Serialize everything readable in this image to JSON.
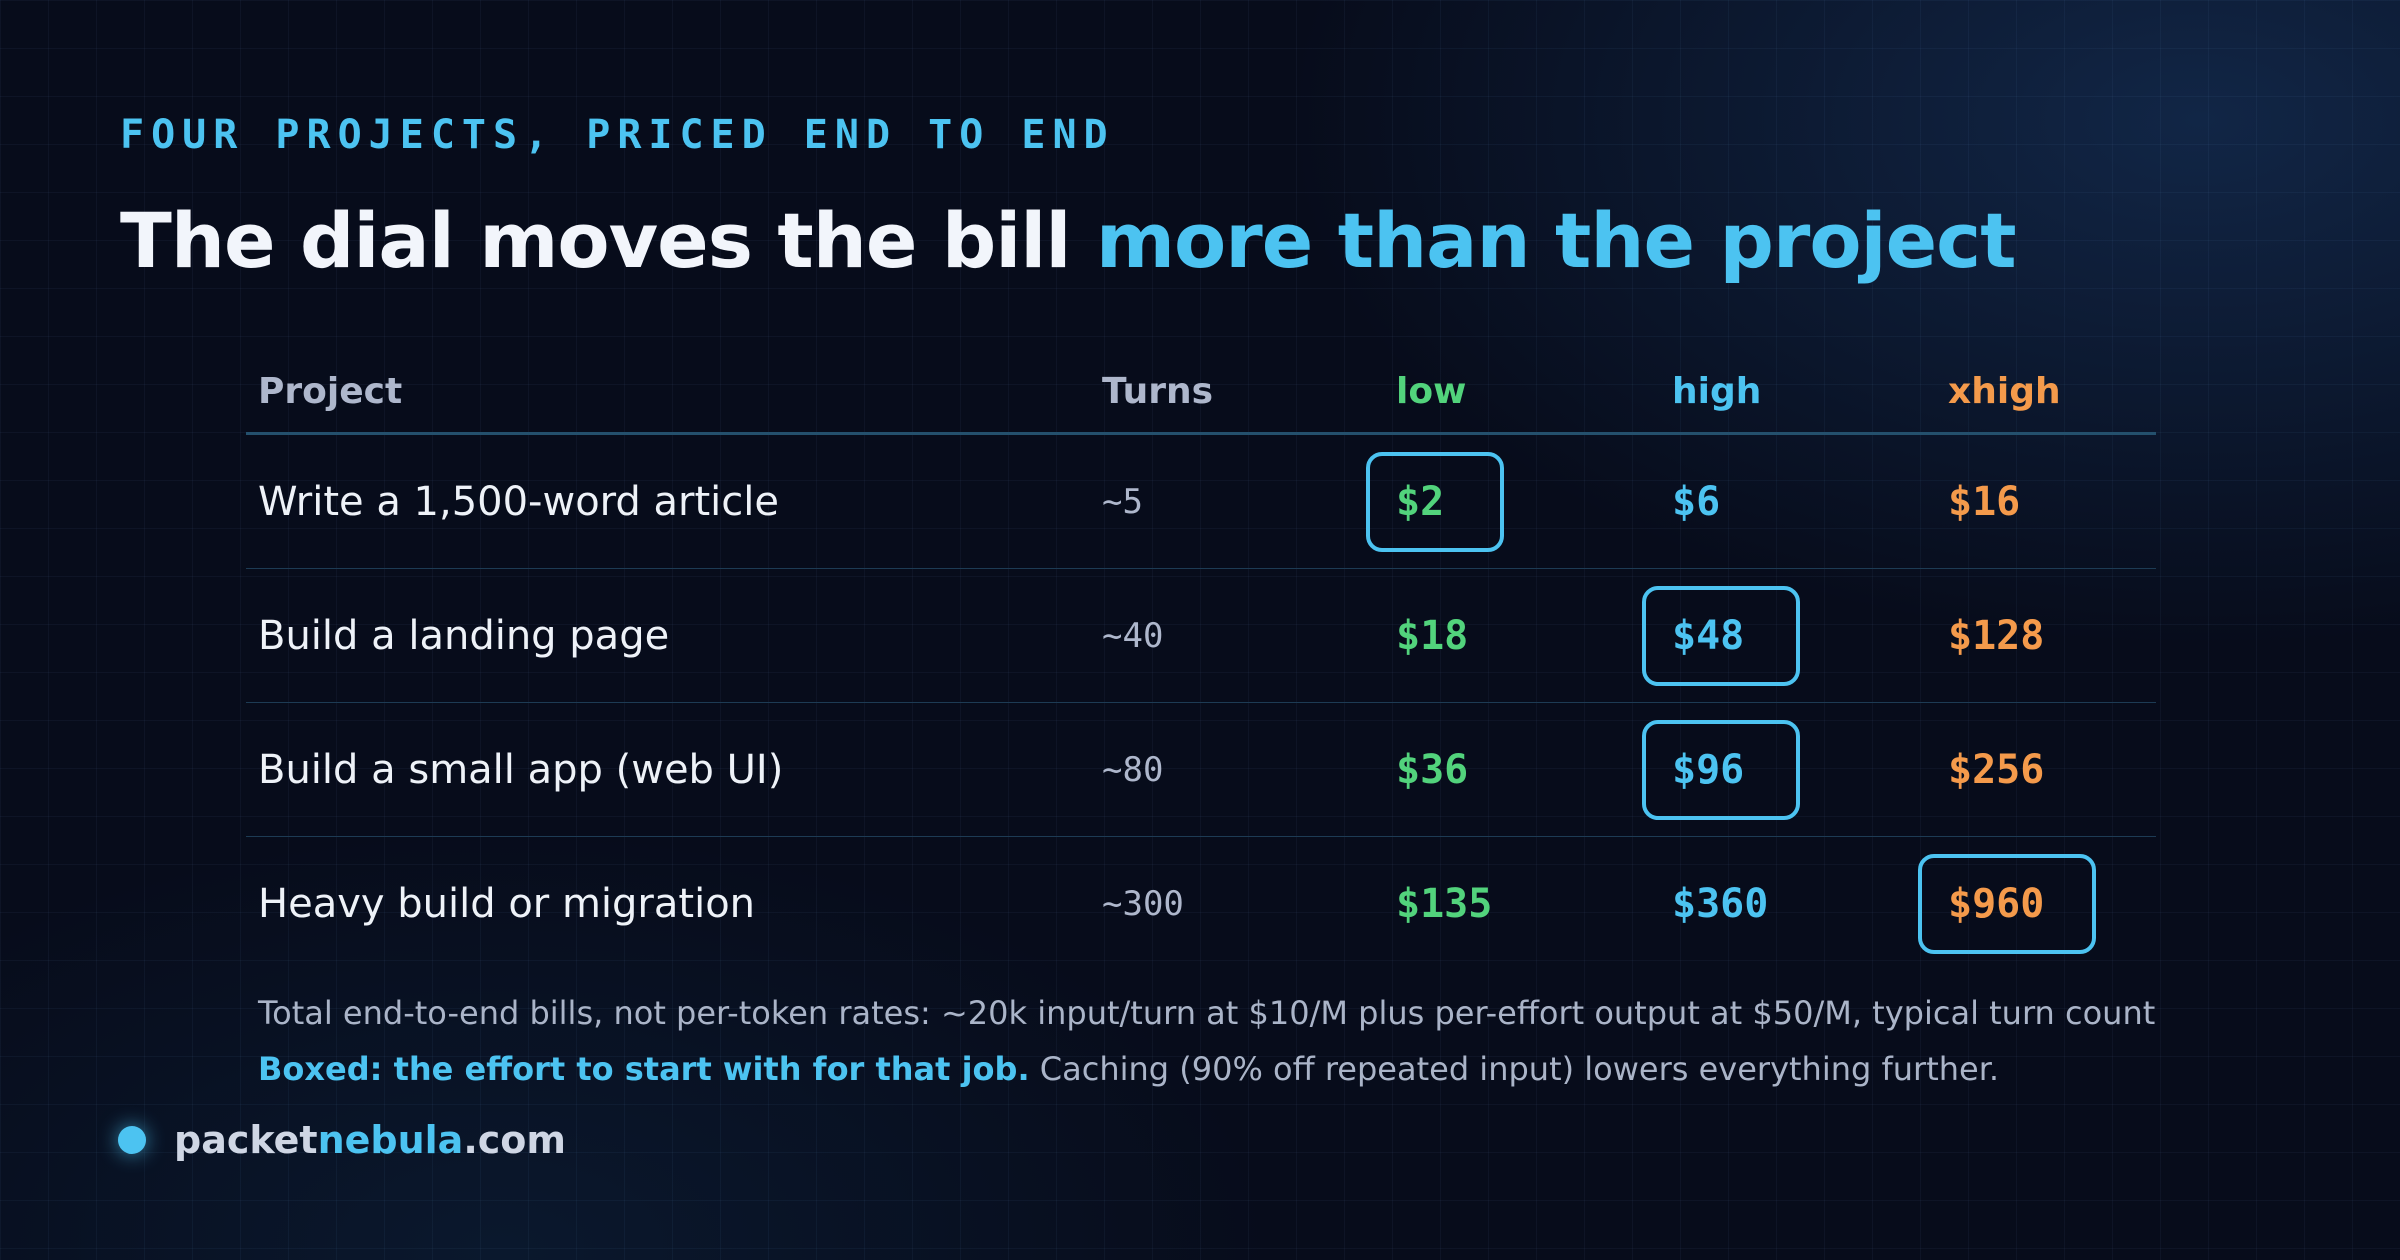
{
  "eyebrow": "FOUR PROJECTS, PRICED END TO END",
  "title": {
    "lead": "The dial moves the bill ",
    "accent": "more than the project"
  },
  "table": {
    "headers": {
      "project": "Project",
      "turns": "Turns",
      "low": "low",
      "high": "high",
      "xhigh": "xhigh"
    },
    "rows": [
      {
        "project": "Write a 1,500-word article",
        "turns": "~5",
        "low": "$2",
        "high": "$6",
        "xhigh": "$16",
        "boxed": "low"
      },
      {
        "project": "Build a landing page",
        "turns": "~40",
        "low": "$18",
        "high": "$48",
        "xhigh": "$128",
        "boxed": "high"
      },
      {
        "project": "Build a small app (web UI)",
        "turns": "~80",
        "low": "$36",
        "high": "$96",
        "xhigh": "$256",
        "boxed": "high"
      },
      {
        "project": "Heavy build or migration",
        "turns": "~300",
        "low": "$135",
        "high": "$360",
        "xhigh": "$960",
        "boxed": "xhigh"
      }
    ]
  },
  "notes": {
    "line1": "Total end-to-end bills, not per-token rates: ~20k input/turn at $10/M plus per-effort output at $50/M, typical turn count",
    "line2_strong": "Boxed: the effort to start with for that job.",
    "line2_rest": " Caching (90% off repeated input) lowers everything further."
  },
  "brand": {
    "pre": "packet",
    "mid": "nebula",
    "post": ".com"
  },
  "colors": {
    "accent": "#4cc3f1",
    "low": "#52d37c",
    "high": "#4cc3f1",
    "xhigh": "#f49a4b",
    "background": "#070c1b"
  }
}
